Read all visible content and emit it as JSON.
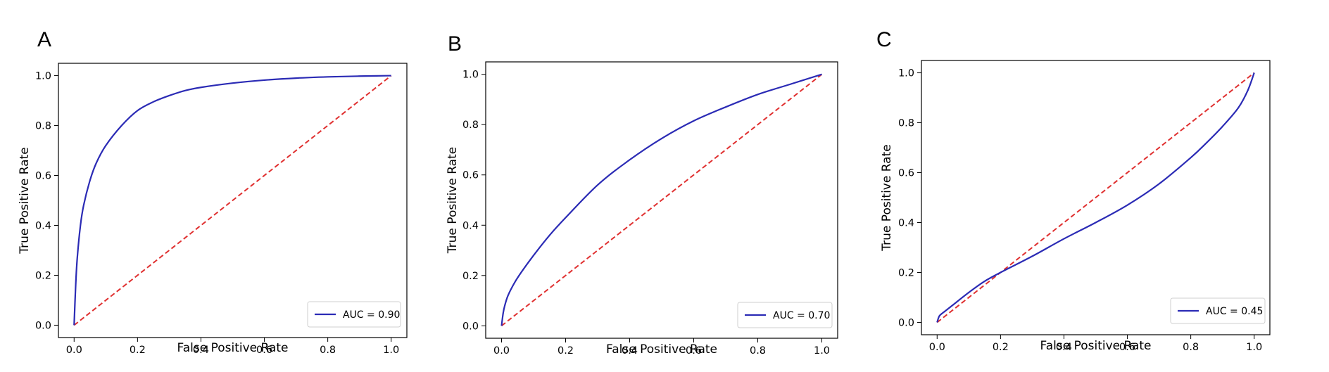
{
  "chart_data": [
    {
      "panel": "A",
      "type": "line",
      "xlabel": "False Positive Rate",
      "ylabel": "True Positive Rate",
      "xlim": [
        0,
        1
      ],
      "ylim": [
        0,
        1
      ],
      "xticks": [
        "0.0",
        "0.2",
        "0.4",
        "0.6",
        "0.8",
        "1.0"
      ],
      "yticks": [
        "0.0",
        "0.2",
        "0.4",
        "0.6",
        "0.8",
        "1.0"
      ],
      "legend_position": "lower-right",
      "series": [
        {
          "name": "AUC = 0.90",
          "color": "#2b2bb5",
          "style": "solid",
          "x": [
            0,
            0.005,
            0.01,
            0.02,
            0.03,
            0.05,
            0.07,
            0.1,
            0.15,
            0.2,
            0.25,
            0.3,
            0.35,
            0.4,
            0.5,
            0.6,
            0.7,
            0.8,
            0.9,
            1.0
          ],
          "y": [
            0,
            0.16,
            0.27,
            0.4,
            0.48,
            0.58,
            0.65,
            0.72,
            0.8,
            0.86,
            0.895,
            0.92,
            0.94,
            0.953,
            0.97,
            0.982,
            0.99,
            0.995,
            0.998,
            1.0
          ]
        },
        {
          "name": "",
          "color": "#e03030",
          "style": "dashed",
          "x": [
            0,
            1
          ],
          "y": [
            0,
            1
          ]
        }
      ]
    },
    {
      "panel": "B",
      "type": "line",
      "xlabel": "False Positive Rate",
      "ylabel": "True Positive Rate",
      "xlim": [
        0,
        1
      ],
      "ylim": [
        0,
        1
      ],
      "xticks": [
        "0.0",
        "0.2",
        "0.4",
        "0.6",
        "0.8",
        "1.0"
      ],
      "yticks": [
        "0.0",
        "0.2",
        "0.4",
        "0.6",
        "0.8",
        "1.0"
      ],
      "legend_position": "lower-right",
      "series": [
        {
          "name": "AUC = 0.70",
          "color": "#2b2bb5",
          "style": "solid",
          "x": [
            0,
            0.005,
            0.01,
            0.02,
            0.04,
            0.06,
            0.1,
            0.15,
            0.2,
            0.3,
            0.4,
            0.5,
            0.6,
            0.7,
            0.8,
            0.9,
            1.0
          ],
          "y": [
            0,
            0.05,
            0.08,
            0.12,
            0.17,
            0.21,
            0.28,
            0.36,
            0.43,
            0.56,
            0.66,
            0.745,
            0.815,
            0.87,
            0.92,
            0.96,
            1.0
          ]
        },
        {
          "name": "",
          "color": "#e03030",
          "style": "dashed",
          "x": [
            0,
            1
          ],
          "y": [
            0,
            1
          ]
        }
      ]
    },
    {
      "panel": "C",
      "type": "line",
      "xlabel": "False Positive Rate",
      "ylabel": "True Positive Rate",
      "xlim": [
        0,
        1
      ],
      "ylim": [
        0,
        1
      ],
      "xticks": [
        "0.0",
        "0.2",
        "0.4",
        "0.6",
        "0.8",
        "1.0"
      ],
      "yticks": [
        "0.0",
        "0.2",
        "0.4",
        "0.6",
        "0.8",
        "1.0"
      ],
      "legend_position": "lower-right",
      "series": [
        {
          "name": "AUC = 0.45",
          "color": "#2b2bb5",
          "style": "solid",
          "x": [
            0,
            0.005,
            0.01,
            0.03,
            0.05,
            0.1,
            0.15,
            0.2,
            0.3,
            0.4,
            0.5,
            0.6,
            0.7,
            0.8,
            0.85,
            0.9,
            0.95,
            0.98,
            1.0
          ],
          "y": [
            0,
            0.02,
            0.03,
            0.05,
            0.07,
            0.12,
            0.165,
            0.2,
            0.265,
            0.335,
            0.4,
            0.47,
            0.555,
            0.66,
            0.72,
            0.785,
            0.86,
            0.93,
            1.0
          ]
        },
        {
          "name": "",
          "color": "#e03030",
          "style": "dashed",
          "x": [
            0,
            1
          ],
          "y": [
            0,
            1
          ]
        }
      ]
    }
  ]
}
